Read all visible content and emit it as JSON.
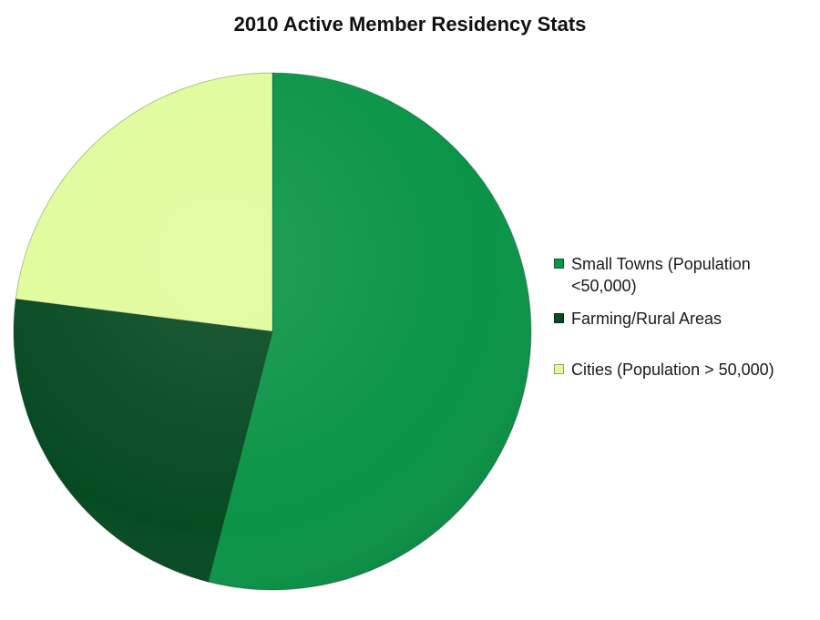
{
  "chart_data": {
    "type": "pie",
    "title": "2010 Active Member Residency Stats",
    "slices": [
      {
        "label": "Small Towns (Population <50,000)",
        "value": 54,
        "color": "#0a9447"
      },
      {
        "label": "Farming/Rural Areas",
        "value": 23,
        "color": "#064a22"
      },
      {
        "label": "Cities (Population > 50,000)",
        "value": 23,
        "color": "#e0fb9c"
      }
    ],
    "legend_position": "right"
  }
}
